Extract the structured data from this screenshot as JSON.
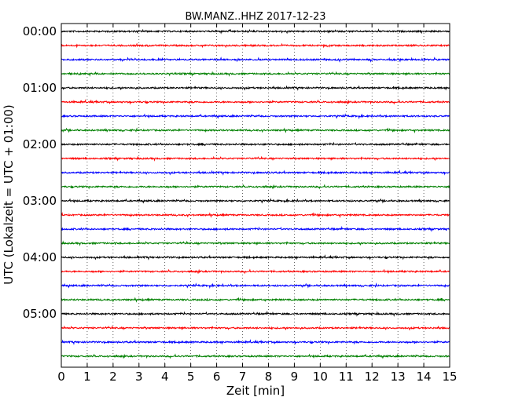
{
  "chart_data": {
    "type": "line",
    "title": "BW.MANZ..HHZ 2017-12-23",
    "xlabel": "Zeit  [min]",
    "ylabel": "UTC (Lokalzeit = UTC + 01:00)",
    "xlim": [
      0,
      15
    ],
    "x_ticks": [
      "0",
      "1",
      "2",
      "3",
      "4",
      "5",
      "6",
      "7",
      "8",
      "9",
      "10",
      "11",
      "12",
      "13",
      "14",
      "15"
    ],
    "y_ticks": [
      "00:00",
      "01:00",
      "02:00",
      "03:00",
      "04:00",
      "05:00"
    ],
    "grid": "vertical dotted lines at each minute",
    "traces_per_hour": 4,
    "trace_interval_minutes": 15,
    "trace_count": 24,
    "trace_colors": [
      "#000000",
      "#ff0000",
      "#0000ff",
      "#008000"
    ],
    "traces": [
      {
        "start": "00:00",
        "color": "#000000"
      },
      {
        "start": "00:15",
        "color": "#ff0000"
      },
      {
        "start": "00:30",
        "color": "#0000ff"
      },
      {
        "start": "00:45",
        "color": "#008000"
      },
      {
        "start": "01:00",
        "color": "#000000"
      },
      {
        "start": "01:15",
        "color": "#ff0000"
      },
      {
        "start": "01:30",
        "color": "#0000ff"
      },
      {
        "start": "01:45",
        "color": "#008000"
      },
      {
        "start": "02:00",
        "color": "#000000"
      },
      {
        "start": "02:15",
        "color": "#ff0000"
      },
      {
        "start": "02:30",
        "color": "#0000ff"
      },
      {
        "start": "02:45",
        "color": "#008000"
      },
      {
        "start": "03:00",
        "color": "#000000"
      },
      {
        "start": "03:15",
        "color": "#ff0000"
      },
      {
        "start": "03:30",
        "color": "#0000ff"
      },
      {
        "start": "03:45",
        "color": "#008000"
      },
      {
        "start": "04:00",
        "color": "#000000"
      },
      {
        "start": "04:15",
        "color": "#ff0000"
      },
      {
        "start": "04:30",
        "color": "#0000ff"
      },
      {
        "start": "04:45",
        "color": "#008000"
      },
      {
        "start": "05:00",
        "color": "#000000"
      },
      {
        "start": "05:15",
        "color": "#ff0000"
      },
      {
        "start": "05:30",
        "color": "#0000ff"
      },
      {
        "start": "05:45",
        "color": "#008000"
      }
    ]
  }
}
